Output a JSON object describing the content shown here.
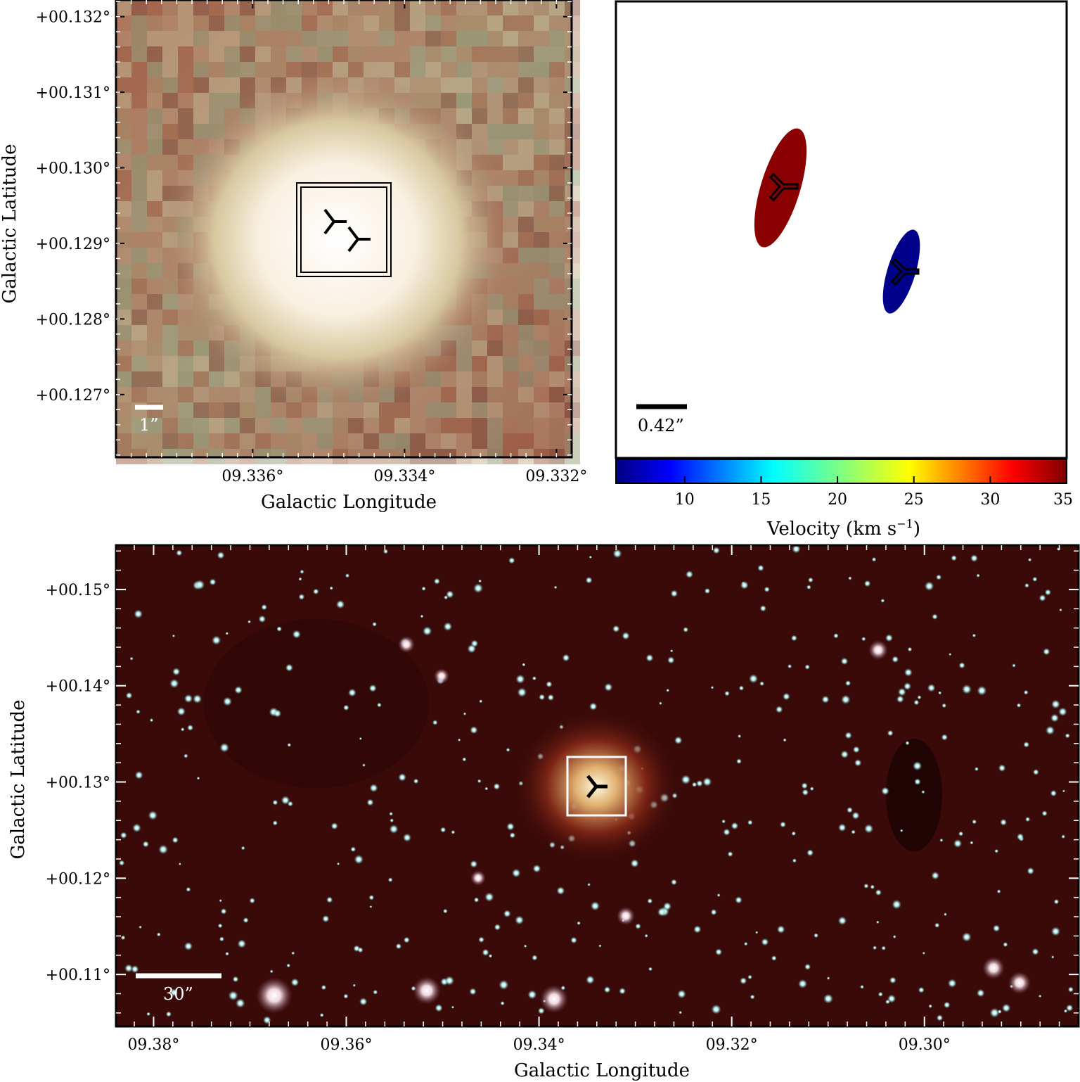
{
  "figure": {
    "panel_a": {
      "xlabel": "Galactic Longitude",
      "ylabel": "Galactic Latitude",
      "xticks": [
        {
          "value": 9.336,
          "label": "09.336°"
        },
        {
          "value": 9.334,
          "label": "09.334°"
        },
        {
          "value": 9.332,
          "label": "09.332°"
        }
      ],
      "yticks": [
        {
          "value": 0.132,
          "label": "+00.132°"
        },
        {
          "value": 0.131,
          "label": "+00.131°"
        },
        {
          "value": 0.13,
          "label": "+00.130°"
        },
        {
          "value": 0.129,
          "label": "+00.129°"
        },
        {
          "value": 0.128,
          "label": "+00.128°"
        },
        {
          "value": 0.127,
          "label": "+00.127°"
        }
      ],
      "scalebar_label": "1”",
      "marker_color": "#000000",
      "scalebar_color": "#ffffff"
    },
    "panel_b": {
      "scalebar_label": "0.42”",
      "components": [
        {
          "name": "red-component",
          "color": "#8b0000",
          "velocity": 34
        },
        {
          "name": "blue-component",
          "color": "#00008b",
          "velocity": 7
        }
      ],
      "colorbar": {
        "label": "Velocity (km s",
        "label_exponent": "−1",
        "label_suffix": ")",
        "min": 5.5,
        "max": 35,
        "ticks": [
          {
            "value": 10,
            "label": "10"
          },
          {
            "value": 15,
            "label": "15"
          },
          {
            "value": 20,
            "label": "20"
          },
          {
            "value": 25,
            "label": "25"
          },
          {
            "value": 30,
            "label": "30"
          },
          {
            "value": 35,
            "label": "35"
          }
        ]
      }
    },
    "panel_c": {
      "xlabel": "Galactic Longitude",
      "ylabel": "Galactic Latitude",
      "xticks": [
        {
          "value": 9.38,
          "label": "09.38°"
        },
        {
          "value": 9.36,
          "label": "09.36°"
        },
        {
          "value": 9.34,
          "label": "09.34°"
        },
        {
          "value": 9.32,
          "label": "09.32°"
        },
        {
          "value": 9.3,
          "label": "09.30°"
        }
      ],
      "yticks": [
        {
          "value": 0.15,
          "label": "+00.15°"
        },
        {
          "value": 0.14,
          "label": "+00.14°"
        },
        {
          "value": 0.13,
          "label": "+00.13°"
        },
        {
          "value": 0.12,
          "label": "+00.12°"
        },
        {
          "value": 0.11,
          "label": "+00.11°"
        }
      ],
      "scalebar_label": "30”",
      "box_color": "#ffffff",
      "background_color": "#3a0a08",
      "star_color": "#a8e8e8"
    }
  }
}
